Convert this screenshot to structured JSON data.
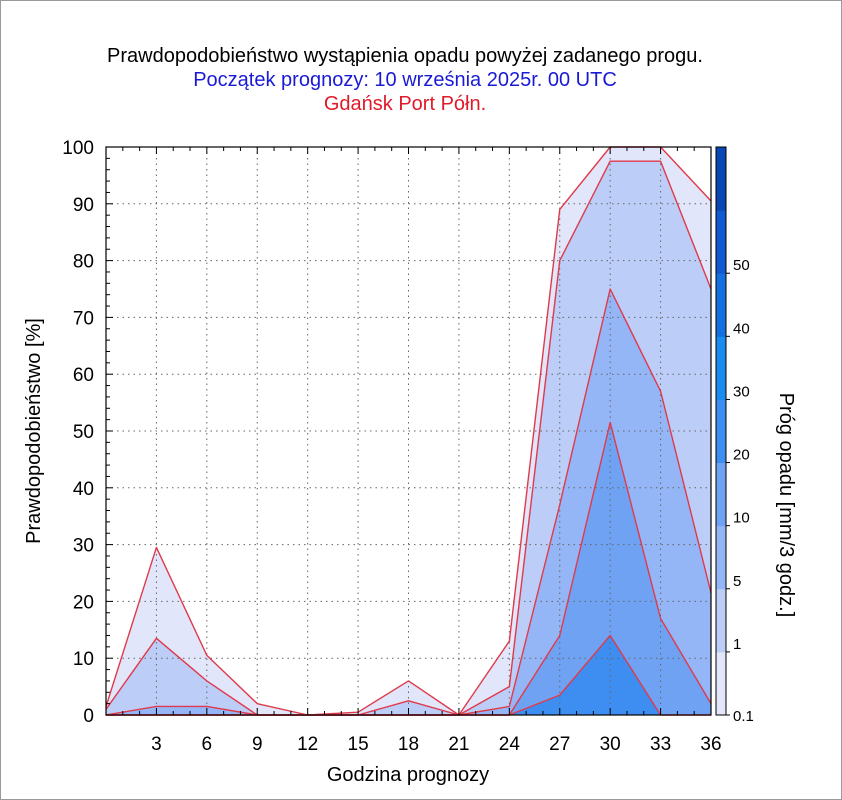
{
  "chart_data": {
    "type": "area",
    "title": "Prawdopodobieństwo wystąpienia opadu powyżej zadanego progu.",
    "subtitle": "Początek prognozy: 10 września 2025r. 00 UTC",
    "location": "Gdańsk Port Półn.",
    "xlabel": "Godzina prognozy",
    "ylabel": "Prawdopodobieństwo [%]",
    "xlim": [
      0,
      36
    ],
    "ylim": [
      0,
      100
    ],
    "x_ticks": [
      "3",
      "6",
      "9",
      "12",
      "15",
      "18",
      "21",
      "24",
      "27",
      "30",
      "33",
      "36"
    ],
    "y_ticks": [
      "0",
      "10",
      "20",
      "30",
      "40",
      "50",
      "60",
      "70",
      "80",
      "90",
      "100"
    ],
    "grid": "dotted",
    "x": [
      0,
      3,
      6,
      9,
      12,
      15,
      18,
      21,
      24,
      27,
      30,
      33,
      36
    ],
    "series": [
      {
        "name": "0.1",
        "color": "#e1e6fb",
        "values": [
          1.5,
          29.5,
          10.5,
          2,
          0,
          0.5,
          6,
          0,
          13,
          89,
          100,
          100,
          90.5
        ]
      },
      {
        "name": "1",
        "color": "#bccdf8",
        "values": [
          1,
          13.5,
          6,
          0,
          0,
          0,
          2.5,
          0,
          5,
          80,
          97.5,
          97.5,
          75
        ]
      },
      {
        "name": "5",
        "color": "#94b6f6",
        "values": [
          0,
          1.5,
          1.5,
          0,
          0,
          0,
          0,
          0,
          1.5,
          37,
          75,
          57,
          21.5
        ]
      },
      {
        "name": "10",
        "color": "#6fa2f2",
        "values": [
          0,
          0,
          0,
          0,
          0,
          0,
          0,
          0,
          0,
          14,
          51.5,
          17,
          2
        ]
      },
      {
        "name": "20",
        "color": "#3d8ef0",
        "values": [
          0,
          0,
          0,
          0,
          0,
          0,
          0,
          0,
          0,
          3.5,
          14,
          0,
          0
        ]
      }
    ],
    "colorbar": {
      "label": "Próg opadu [mm/3 godz.]",
      "ticks": [
        "0.1",
        "1",
        "5",
        "10",
        "20",
        "30",
        "40",
        "50"
      ],
      "colors": [
        "#e1e6fb",
        "#bccdf8",
        "#94b6f6",
        "#6fa2f2",
        "#3d8ef0",
        "#1a8cf0",
        "#1470e0",
        "#0f5ad0",
        "#0a46b4"
      ]
    },
    "outline_color": "#e03a4a"
  }
}
